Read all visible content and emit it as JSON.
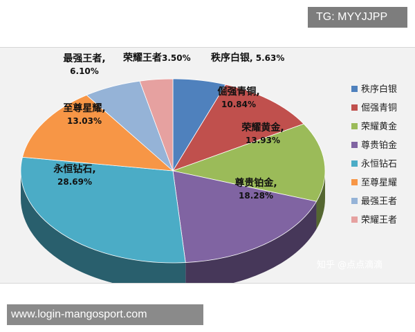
{
  "header_tag": "TG: MYYJJPP",
  "footer_url": "www.login-mangosport.com",
  "watermark": "知乎 @点点滴滴",
  "chart_data": {
    "type": "pie",
    "title": "",
    "legend_position": "right",
    "slices": [
      {
        "name": "秩序白银",
        "value": 5.63,
        "label": "5.63%",
        "color": "#4f81bd"
      },
      {
        "name": "倔强青铜",
        "value": 10.84,
        "label": "10.84%",
        "color": "#c0504d"
      },
      {
        "name": "荣耀黄金",
        "value": 13.93,
        "label": "13.93%",
        "color": "#9bbb59"
      },
      {
        "name": "尊贵铂金",
        "value": 18.28,
        "label": "18.28%",
        "color": "#8064a2"
      },
      {
        "name": "永恒钻石",
        "value": 28.69,
        "label": "28.69%",
        "color": "#4bacc6"
      },
      {
        "name": "至尊星耀",
        "value": 13.03,
        "label": "13.03%",
        "color": "#f79646"
      },
      {
        "name": "最强王者",
        "value": 6.1,
        "label": "6.10%",
        "color": "#95b3d7"
      },
      {
        "name": "荣耀王者",
        "value": 3.5,
        "label": "3.50%",
        "color": "#e6a1a0"
      }
    ]
  }
}
